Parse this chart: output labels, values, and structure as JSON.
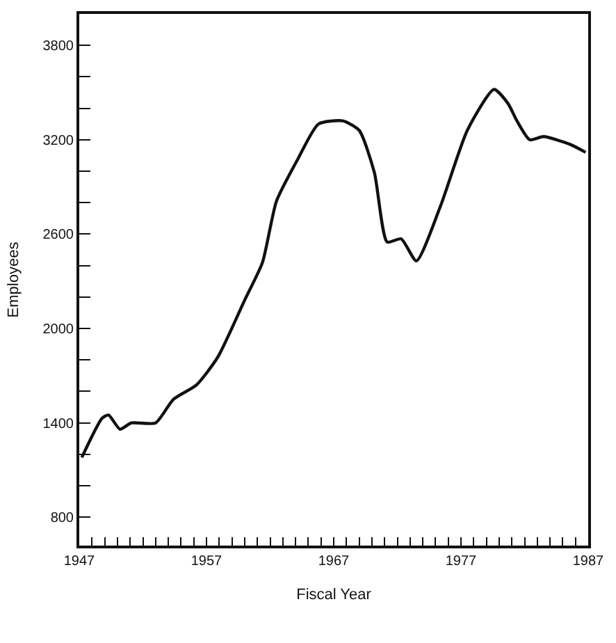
{
  "chart_data": {
    "type": "line",
    "xlabel": "Fiscal Year",
    "ylabel": "Employees",
    "x": [
      1947.2,
      1948.8,
      1949.3,
      1950.2,
      1951.1,
      1953.0,
      1954.4,
      1956.2,
      1957.9,
      1960.0,
      1961.4,
      1962.5,
      1964.2,
      1965.8,
      1967.7,
      1969.0,
      1970.2,
      1971.2,
      1972.3,
      1973.5,
      1975.4,
      1977.5,
      1979.6,
      1980.7,
      1981.4,
      1982.4,
      1983.5,
      1985.6,
      1986.8
    ],
    "values": [
      1180,
      1430,
      1450,
      1360,
      1400,
      1400,
      1550,
      1640,
      1820,
      2180,
      2420,
      2810,
      3080,
      3300,
      3320,
      3260,
      2990,
      2550,
      2570,
      2430,
      2780,
      3260,
      3520,
      3430,
      3320,
      3200,
      3220,
      3170,
      3120
    ],
    "color": "#111111",
    "line_style": "solid",
    "marker": "none",
    "xlim": [
      1947,
      1987
    ],
    "ylim": [
      620,
      4000
    ],
    "xticks": [
      1947,
      {
        "value": 1948,
        "label": null
      },
      {
        "value": 1949,
        "label": null
      },
      {
        "value": 1950,
        "label": null
      },
      {
        "value": 1951,
        "label": null
      },
      {
        "value": 1952,
        "label": null
      },
      {
        "value": 1953,
        "label": null
      },
      {
        "value": 1954,
        "label": null
      },
      {
        "value": 1955,
        "label": null
      },
      {
        "value": 1956,
        "label": null
      },
      1957,
      {
        "value": 1958,
        "label": null
      },
      {
        "value": 1959,
        "label": null
      },
      {
        "value": 1960,
        "label": null
      },
      {
        "value": 1961,
        "label": null
      },
      {
        "value": 1962,
        "label": null
      },
      {
        "value": 1963,
        "label": null
      },
      {
        "value": 1964,
        "label": null
      },
      {
        "value": 1965,
        "label": null
      },
      {
        "value": 1966,
        "label": null
      },
      1967,
      {
        "value": 1968,
        "label": null
      },
      {
        "value": 1969,
        "label": null
      },
      {
        "value": 1970,
        "label": null
      },
      {
        "value": 1971,
        "label": null
      },
      {
        "value": 1972,
        "label": null
      },
      {
        "value": 1973,
        "label": null
      },
      {
        "value": 1974,
        "label": null
      },
      {
        "value": 1975,
        "label": null
      },
      {
        "value": 1976,
        "label": null
      },
      1977,
      {
        "value": 1978,
        "label": null
      },
      {
        "value": 1979,
        "label": null
      },
      {
        "value": 1980,
        "label": null
      },
      {
        "value": 1981,
        "label": null
      },
      {
        "value": 1982,
        "label": null
      },
      {
        "value": 1983,
        "label": null
      },
      {
        "value": 1984,
        "label": null
      },
      {
        "value": 1985,
        "label": null
      },
      {
        "value": 1986,
        "label": null
      },
      1987
    ],
    "yticks": [
      800,
      {
        "value": 1000,
        "label": null
      },
      {
        "value": 1200,
        "label": null
      },
      1400,
      {
        "value": 1600,
        "label": null
      },
      {
        "value": 1800,
        "label": null
      },
      2000,
      {
        "value": 2200,
        "label": null
      },
      {
        "value": 2400,
        "label": null
      },
      2600,
      {
        "value": 2800,
        "label": null
      },
      {
        "value": 3000,
        "label": null
      },
      3200,
      {
        "value": 3400,
        "label": null
      },
      {
        "value": 3600,
        "label": null
      },
      3800
    ]
  }
}
